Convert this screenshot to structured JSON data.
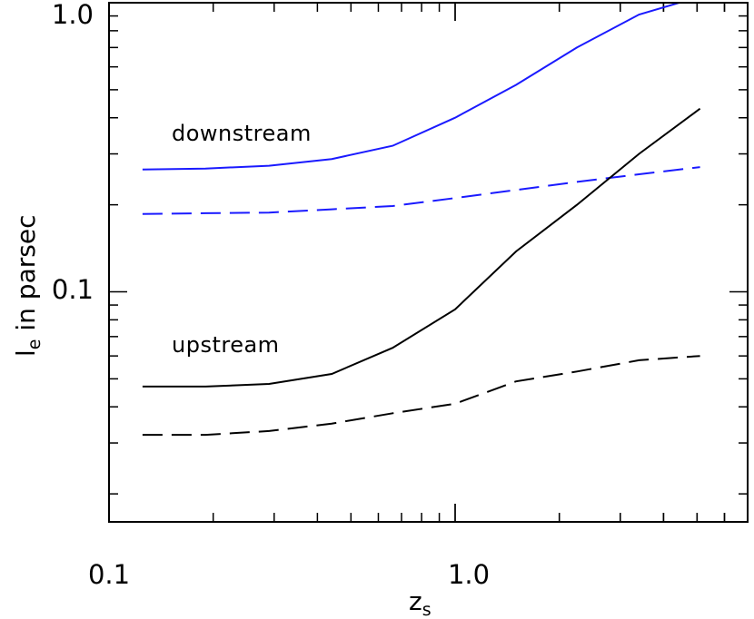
{
  "chart_data": {
    "type": "line",
    "xscale": "log",
    "yscale": "log",
    "xlim": [
      0.1,
      7.0
    ],
    "ylim": [
      0.016,
      1.0
    ],
    "x_tick_labels": [
      "0.1",
      "1.0"
    ],
    "y_tick_labels": [
      "0.1",
      "1.0"
    ],
    "xlabel": {
      "main": "z",
      "sub": "s"
    },
    "ylabel": {
      "main": "l",
      "sub": "e",
      "rest": " in parsec"
    },
    "annotations": [
      "downstream",
      "upstream"
    ],
    "x": [
      0.125,
      0.19,
      0.29,
      0.44,
      0.66,
      1.0,
      1.5,
      2.25,
      3.4,
      5.1
    ],
    "series": [
      {
        "color": "#1a1aff",
        "dash": "solid",
        "values": [
          0.265,
          0.267,
          0.273,
          0.288,
          0.32,
          0.4,
          0.52,
          0.7,
          0.91,
          1.05
        ]
      },
      {
        "color": "#1a1aff",
        "dash": "dashed",
        "values": [
          0.186,
          0.187,
          0.188,
          0.193,
          0.198,
          0.211,
          0.225,
          0.24,
          0.255,
          0.27
        ]
      },
      {
        "color": "#000000",
        "dash": "solid",
        "values": [
          0.047,
          0.047,
          0.048,
          0.052,
          0.064,
          0.087,
          0.138,
          0.2,
          0.3,
          0.43
        ]
      },
      {
        "color": "#000000",
        "dash": "dashed",
        "values": [
          0.032,
          0.032,
          0.033,
          0.035,
          0.038,
          0.041,
          0.049,
          0.053,
          0.058,
          0.06
        ]
      }
    ],
    "grid": false,
    "legend": "none"
  }
}
